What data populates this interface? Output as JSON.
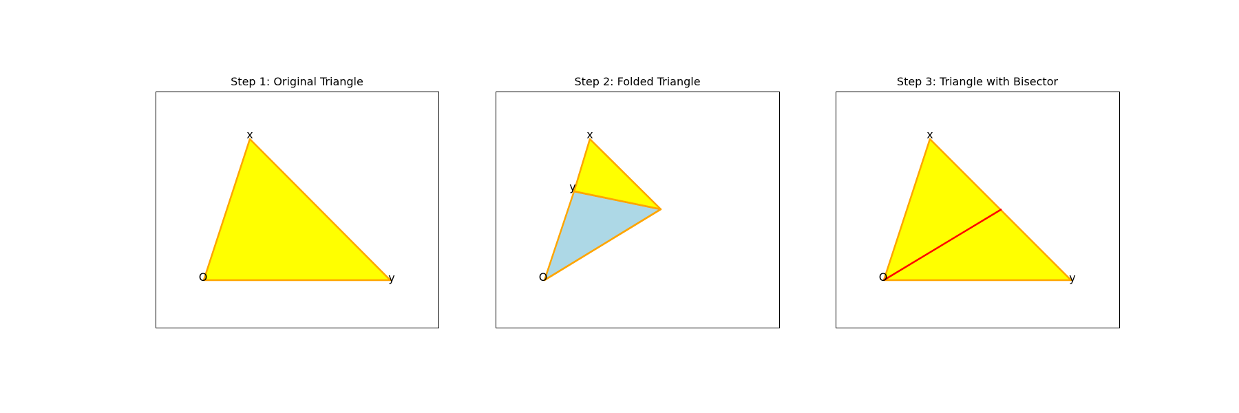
{
  "colors": {
    "fill": "#ffff00",
    "folded_fill": "#add8e6",
    "edge": "#ffa500",
    "bisector": "#ff0000",
    "frame": "#000000"
  },
  "panels": [
    {
      "title": "Step 1: Original Triangle",
      "labels": {
        "o": "O",
        "x": "x",
        "y": "y"
      }
    },
    {
      "title": "Step 2: Folded Triangle",
      "labels": {
        "o": "O",
        "x": "x",
        "y": "y"
      }
    },
    {
      "title": "Step 3: Triangle with Bisector",
      "labels": {
        "o": "O",
        "x": "x",
        "y": "y"
      }
    }
  ]
}
